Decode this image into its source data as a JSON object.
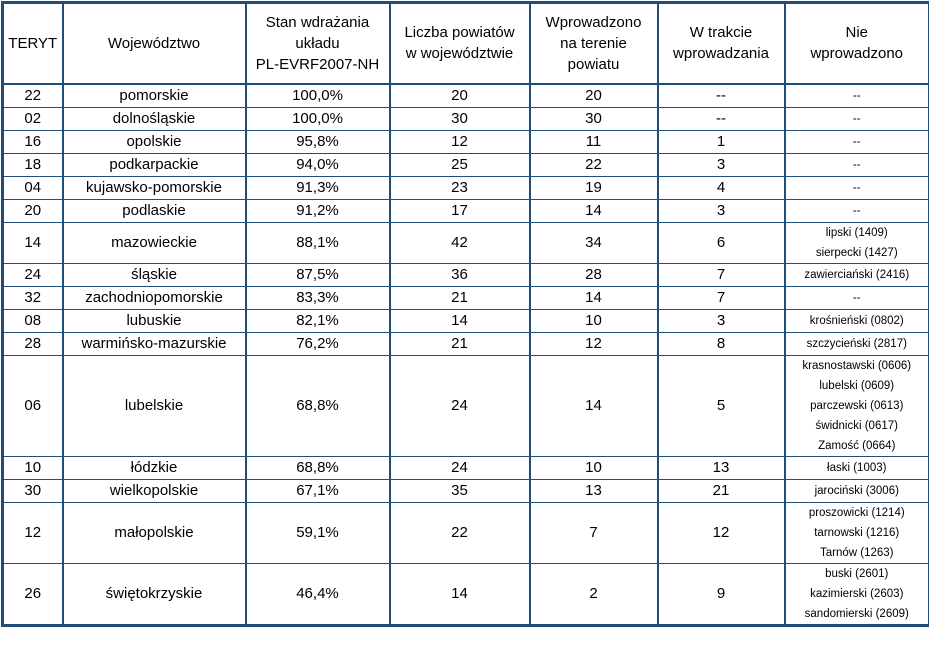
{
  "colors": {
    "border": "#1F4E79",
    "text": "#000000",
    "background": "#FFFFFF"
  },
  "chart_data": {
    "type": "table",
    "columns": [
      "TERYT",
      "Województwo",
      "Stan wdrażania\nukładu\nPL-EVRF2007-NH",
      "Liczba powiatów\nw województwie",
      "Wprowadzono\nna terenie\npowiatu",
      "W trakcie\nwprowadzania",
      "Nie\nwprowadzono"
    ],
    "rows": [
      {
        "teryt": "22",
        "wojewodztwo": "pomorskie",
        "stan": "100,0%",
        "liczba": "20",
        "wprowadzono": "20",
        "w_trakcie": "--",
        "nie_wprowadzono": "--"
      },
      {
        "teryt": "02",
        "wojewodztwo": "dolnośląskie",
        "stan": "100,0%",
        "liczba": "30",
        "wprowadzono": "30",
        "w_trakcie": "--",
        "nie_wprowadzono": "--"
      },
      {
        "teryt": "16",
        "wojewodztwo": "opolskie",
        "stan": "95,8%",
        "liczba": "12",
        "wprowadzono": "11",
        "w_trakcie": "1",
        "nie_wprowadzono": "--"
      },
      {
        "teryt": "18",
        "wojewodztwo": "podkarpackie",
        "stan": "94,0%",
        "liczba": "25",
        "wprowadzono": "22",
        "w_trakcie": "3",
        "nie_wprowadzono": "--"
      },
      {
        "teryt": "04",
        "wojewodztwo": "kujawsko-pomorskie",
        "stan": "91,3%",
        "liczba": "23",
        "wprowadzono": "19",
        "w_trakcie": "4",
        "nie_wprowadzono": "--"
      },
      {
        "teryt": "20",
        "wojewodztwo": "podlaskie",
        "stan": "91,2%",
        "liczba": "17",
        "wprowadzono": "14",
        "w_trakcie": "3",
        "nie_wprowadzono": "--"
      },
      {
        "teryt": "14",
        "wojewodztwo": "mazowieckie",
        "stan": "88,1%",
        "liczba": "42",
        "wprowadzono": "34",
        "w_trakcie": "6",
        "nie_wprowadzono": "lipski (1409)\nsierpecki (1427)"
      },
      {
        "teryt": "24",
        "wojewodztwo": "śląskie",
        "stan": "87,5%",
        "liczba": "36",
        "wprowadzono": "28",
        "w_trakcie": "7",
        "nie_wprowadzono": "zawierciański (2416)"
      },
      {
        "teryt": "32",
        "wojewodztwo": "zachodniopomorskie",
        "stan": "83,3%",
        "liczba": "21",
        "wprowadzono": "14",
        "w_trakcie": "7",
        "nie_wprowadzono": "--"
      },
      {
        "teryt": "08",
        "wojewodztwo": "lubuskie",
        "stan": "82,1%",
        "liczba": "14",
        "wprowadzono": "10",
        "w_trakcie": "3",
        "nie_wprowadzono": "krośnieński (0802)"
      },
      {
        "teryt": "28",
        "wojewodztwo": "warmińsko-mazurskie",
        "stan": "76,2%",
        "liczba": "21",
        "wprowadzono": "12",
        "w_trakcie": "8",
        "nie_wprowadzono": "szczycieński (2817)"
      },
      {
        "teryt": "06",
        "wojewodztwo": "lubelskie",
        "stan": "68,8%",
        "liczba": "24",
        "wprowadzono": "14",
        "w_trakcie": "5",
        "nie_wprowadzono": "krasnostawski (0606)\nlubelski (0609)\nparczewski (0613)\nświdnicki (0617)\nZamość (0664)"
      },
      {
        "teryt": "10",
        "wojewodztwo": "łódzkie",
        "stan": "68,8%",
        "liczba": "24",
        "wprowadzono": "10",
        "w_trakcie": "13",
        "nie_wprowadzono": "łaski (1003)"
      },
      {
        "teryt": "30",
        "wojewodztwo": "wielkopolskie",
        "stan": "67,1%",
        "liczba": "35",
        "wprowadzono": "13",
        "w_trakcie": "21",
        "nie_wprowadzono": "jarociński (3006)"
      },
      {
        "teryt": "12",
        "wojewodztwo": "małopolskie",
        "stan": "59,1%",
        "liczba": "22",
        "wprowadzono": "7",
        "w_trakcie": "12",
        "nie_wprowadzono": "proszowicki (1214)\ntarnowski (1216)\nTarnów (1263)"
      },
      {
        "teryt": "26",
        "wojewodztwo": "świętokrzyskie",
        "stan": "46,4%",
        "liczba": "14",
        "wprowadzono": "2",
        "w_trakcie": "9",
        "nie_wprowadzono": "buski (2601)\nkazimierski (2603)\nsandomierski (2609)"
      }
    ]
  }
}
